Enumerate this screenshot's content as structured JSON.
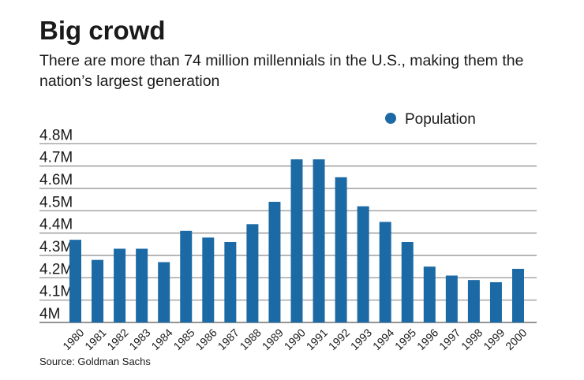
{
  "title": "Big crowd",
  "subtitle": "There are more than 74 million millennials in the U.S., making them the nation’s largest generation",
  "source": "Source: Goldman Sachs",
  "chart_data": {
    "type": "bar",
    "title": "Big crowd",
    "subtitle": "There are more than 74 million millennials in the U.S., making them the nation’s largest generation",
    "xlabel": "",
    "ylabel": "",
    "categories": [
      "1980",
      "1981",
      "1982",
      "1983",
      "1984",
      "1985",
      "1986",
      "1987",
      "1988",
      "1989",
      "1990",
      "1991",
      "1992",
      "1993",
      "1994",
      "1995",
      "1996",
      "1997",
      "1998",
      "1999",
      "2000"
    ],
    "series": [
      {
        "name": "Population",
        "color": "#1b6aa5",
        "values": [
          4.37,
          4.28,
          4.33,
          4.33,
          4.27,
          4.41,
          4.38,
          4.36,
          4.44,
          4.54,
          4.73,
          4.73,
          4.65,
          4.52,
          4.45,
          4.36,
          4.25,
          4.21,
          4.19,
          4.18,
          4.24
        ]
      }
    ],
    "unit": "M",
    "ylim": [
      4.0,
      4.8
    ],
    "yticks": [
      "4M",
      "4.1M",
      "4.2M",
      "4.3M",
      "4.4M",
      "4.5M",
      "4.6M",
      "4.7M",
      "4.8M"
    ],
    "grid": true,
    "legend": "top-right"
  }
}
